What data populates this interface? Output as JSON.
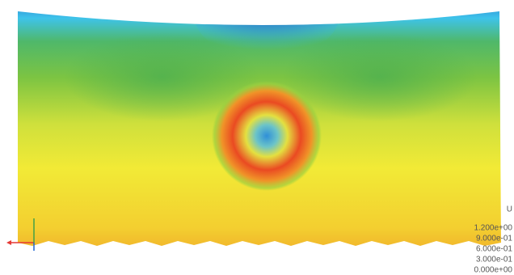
{
  "legend": {
    "title": "U",
    "labels": [
      "1.200e+00",
      "9.000e-01",
      "6.000e-01",
      "3.000e-01",
      "0.000e+00"
    ]
  }
}
